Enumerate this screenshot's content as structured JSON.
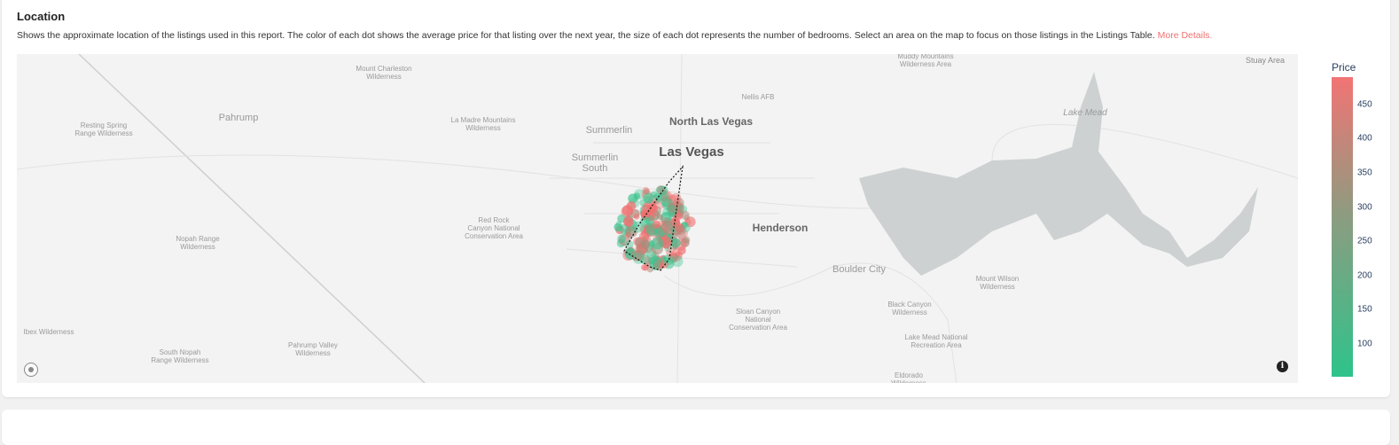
{
  "section": {
    "title": "Location",
    "description": "Shows the approximate location of the listings used in this report. The color of each dot shows the average price for that listing over the next year, the size of each dot represents the number of bedrooms. Select an area on the map to focus on those listings in the Listings Table.",
    "more_link": "More Details."
  },
  "map": {
    "labels": {
      "mount_charleston": "Mount Charleston\nWilderness",
      "muddy": "Muddy Mountains\nWilderness Area",
      "nellis": "Nellis AFB",
      "resting_spring": "Resting Spring\nRange Wilderness",
      "pahrump": "Pahrump",
      "la_madre": "La Madre Mountains\nWilderness",
      "summerlin": "Summerlin",
      "north_lv": "North Las Vegas",
      "lake_mead": "Lake Mead",
      "summerlin_south": "Summerlin\nSouth",
      "las_vegas": "Las Vegas",
      "red_rock": "Red Rock\nCanyon National\nConservation Area",
      "henderson": "Henderson",
      "nopah": "Nopah Range\nWilderness",
      "boulder": "Boulder City",
      "mount_wilson": "Mount Wilson\nWilderness",
      "black_canyon": "Black Canyon\nWilderness",
      "sloan": "Sloan Canyon\nNational\nConservation Area",
      "ibex": "Ibex Wilderness",
      "lake_mead_rec": "Lake Mead National\nRecreation Area",
      "pahrump_valley": "Pahrump Valley\nWilderness",
      "south_nopah": "South Nopah\nRange Wilderness",
      "eldorado": "Eldorado\nWilderness",
      "stuart": "Stuay Area"
    },
    "info_icon": "info-icon",
    "logo_icon": "mapbox-logo-icon"
  },
  "colorbar": {
    "title": "Price",
    "min": 52,
    "max": 490,
    "ticks": [
      "450",
      "400",
      "350",
      "300",
      "250",
      "200",
      "150",
      "100"
    ],
    "tick_values": [
      450,
      400,
      350,
      300,
      250,
      200,
      150,
      100
    ],
    "color_low": "#2ec38b",
    "color_high": "#f27474"
  }
}
